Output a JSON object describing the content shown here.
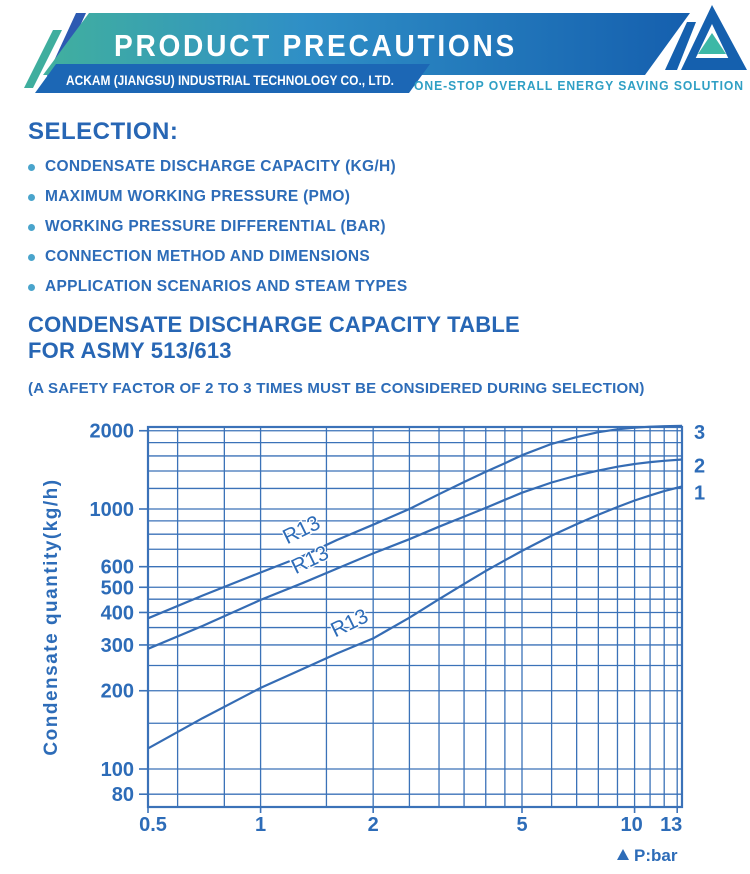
{
  "header": {
    "title": "PRODUCT PRECAUTIONS",
    "company": "ACKAM (JIANGSU) INDUSTRIAL TECHNOLOGY CO., LTD.",
    "tagline": "ONE-STOP OVERALL ENERGY SAVING SOLUTION",
    "colors": {
      "banner_teal": "#41b09e",
      "banner_mid_blue": "#2f8fc6",
      "banner_deep_blue": "#155fae",
      "company_bar_blue": "#1c67b5",
      "tagline_teal": "#2f9fc4",
      "stripe_teal": "#3fae9e",
      "stripe_blue": "#2d5ab2",
      "logo_blue": "#1560ae",
      "logo_teal": "#3db8a6"
    }
  },
  "selection": {
    "heading": "SELECTION:",
    "items": [
      "CONDENSATE DISCHARGE CAPACITY (KG/H)",
      "MAXIMUM WORKING PRESSURE (PMO)",
      "WORKING PRESSURE DIFFERENTIAL (BAR)",
      "CONNECTION METHOD AND DIMENSIONS",
      "APPLICATION SCENARIOS AND STEAM TYPES"
    ]
  },
  "capacity_table": {
    "title_line1": "CONDENSATE DISCHARGE CAPACITY TABLE",
    "title_line2": "FOR ASMY 513/613",
    "note": "(A SAFETY FACTOR OF 2 TO 3 TIMES MUST BE CONSIDERED DURING SELECTION)"
  },
  "chart_data": {
    "type": "line",
    "x_scale": "log",
    "y_scale": "log",
    "xlabel": "P:bar",
    "ylabel": "Condensate quantity(kg/h)",
    "xlim": [
      0.5,
      13.4
    ],
    "ylim": [
      71,
      2090
    ],
    "grid": "on",
    "grid_color": "#3b72b8",
    "line_color": "#356cb4",
    "text_color": "#2d6cb8",
    "x_tick_values": [
      0.5,
      1,
      2,
      5,
      10,
      13
    ],
    "y_tick_values": [
      2000,
      1000,
      600,
      500,
      400,
      300,
      200,
      100,
      80
    ],
    "x_gridlines": [
      0.5,
      0.6,
      0.8,
      1,
      1.5,
      2,
      2.5,
      3,
      3.5,
      4,
      4.5,
      5,
      6,
      7,
      8,
      9,
      10,
      11,
      12,
      13
    ],
    "y_gridlines": [
      80,
      100,
      150,
      200,
      250,
      300,
      350,
      400,
      450,
      500,
      600,
      700,
      800,
      900,
      1000,
      1200,
      1400,
      1600,
      1800,
      2000
    ],
    "series": [
      {
        "end_label": "3",
        "curve_label": "R13",
        "label_pos": {
          "p": 1.31,
          "q": 787
        },
        "points": [
          [
            0.5,
            380
          ],
          [
            0.7,
            465
          ],
          [
            1,
            570
          ],
          [
            1.3,
            660
          ],
          [
            1.6,
            760
          ],
          [
            2,
            870
          ],
          [
            2.5,
            1000
          ],
          [
            3,
            1140
          ],
          [
            3.5,
            1270
          ],
          [
            4,
            1390
          ],
          [
            4.5,
            1500
          ],
          [
            5,
            1610
          ],
          [
            6,
            1780
          ],
          [
            7,
            1890
          ],
          [
            8,
            1975
          ],
          [
            9,
            2025
          ],
          [
            10,
            2055
          ],
          [
            11,
            2072
          ],
          [
            12,
            2082
          ],
          [
            13.4,
            2090
          ]
        ]
      },
      {
        "end_label": "2",
        "curve_label": "R13",
        "label_pos": {
          "p": 1.38,
          "q": 604
        },
        "points": [
          [
            0.5,
            290
          ],
          [
            0.7,
            355
          ],
          [
            1,
            447
          ],
          [
            1.3,
            520
          ],
          [
            1.6,
            590
          ],
          [
            2,
            675
          ],
          [
            2.5,
            765
          ],
          [
            3,
            855
          ],
          [
            3.5,
            935
          ],
          [
            4,
            1010
          ],
          [
            4.5,
            1085
          ],
          [
            5,
            1155
          ],
          [
            6,
            1265
          ],
          [
            7,
            1345
          ],
          [
            8,
            1405
          ],
          [
            9,
            1455
          ],
          [
            10,
            1490
          ],
          [
            11,
            1515
          ],
          [
            12,
            1532
          ],
          [
            13.4,
            1550
          ]
        ]
      },
      {
        "end_label": "1",
        "curve_label": "R13",
        "label_pos": {
          "p": 1.76,
          "q": 345
        },
        "points": [
          [
            0.5,
            120
          ],
          [
            0.7,
            157
          ],
          [
            1,
            205
          ],
          [
            1.3,
            243
          ],
          [
            1.6,
            278
          ],
          [
            2,
            318
          ],
          [
            2.5,
            382
          ],
          [
            3,
            450
          ],
          [
            3.5,
            515
          ],
          [
            4,
            578
          ],
          [
            4.5,
            635
          ],
          [
            5,
            690
          ],
          [
            6,
            790
          ],
          [
            7,
            875
          ],
          [
            8,
            950
          ],
          [
            9,
            1018
          ],
          [
            10,
            1078
          ],
          [
            11,
            1128
          ],
          [
            12,
            1172
          ],
          [
            13.4,
            1220
          ]
        ]
      }
    ]
  }
}
